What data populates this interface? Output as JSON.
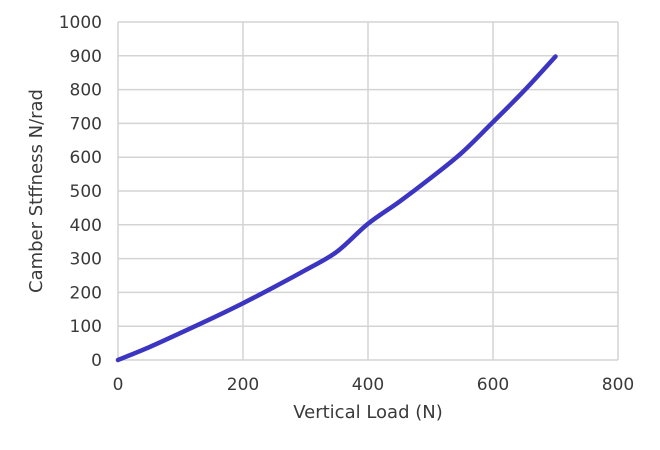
{
  "chart_data": {
    "type": "line",
    "title": "",
    "xlabel": "Vertical Load (N)",
    "ylabel": "Camber Stffness N/rad",
    "xlim": [
      0,
      800
    ],
    "ylim": [
      0,
      1000
    ],
    "x_ticks": [
      0,
      200,
      400,
      600,
      800
    ],
    "y_ticks": [
      0,
      100,
      200,
      300,
      400,
      500,
      600,
      700,
      800,
      900,
      1000
    ],
    "grid": true,
    "legend": "none",
    "series": [
      {
        "color": "#3b35c1",
        "x": [
          0,
          50,
          100,
          150,
          200,
          250,
          300,
          350,
          400,
          450,
          500,
          550,
          600,
          650,
          700
        ],
        "y": [
          0,
          38,
          80,
          123,
          168,
          216,
          266,
          320,
          403,
          468,
          538,
          613,
          704,
          797,
          898
        ]
      }
    ]
  }
}
